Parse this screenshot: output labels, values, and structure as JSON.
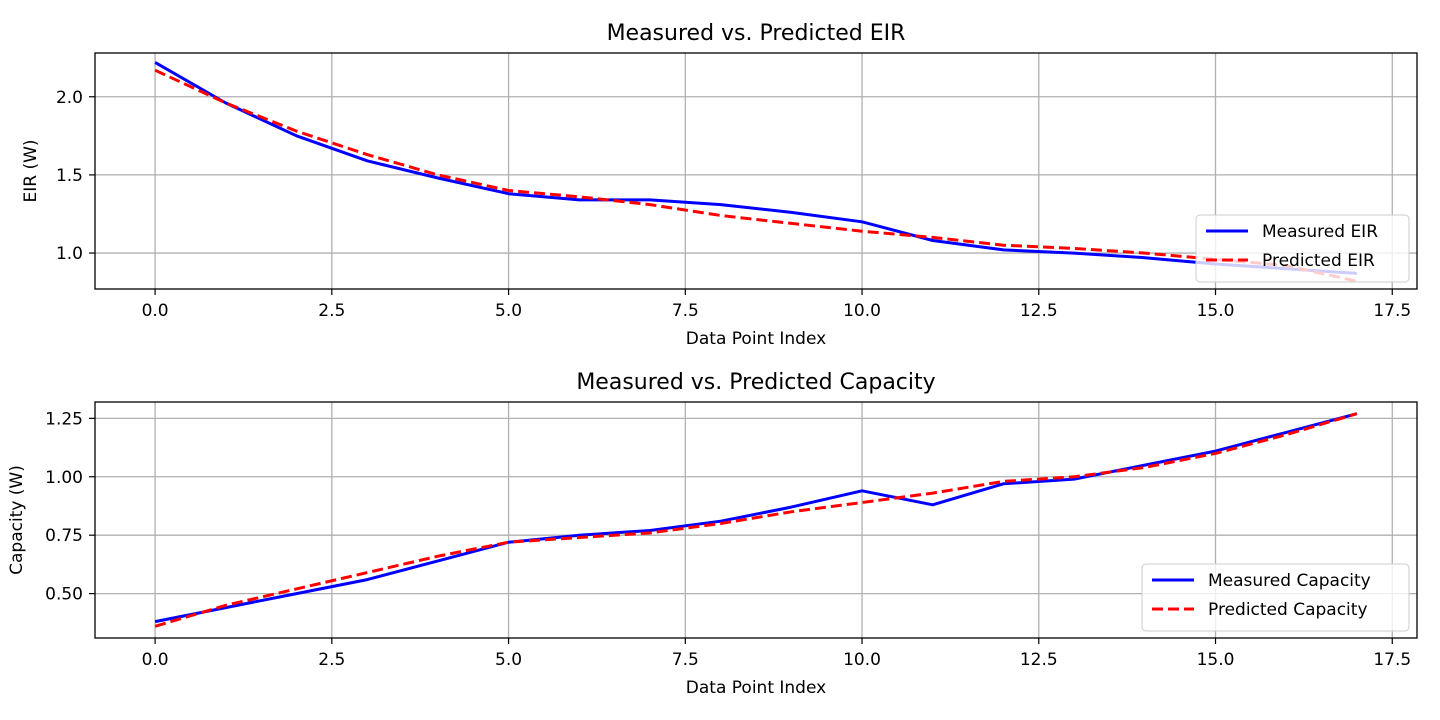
{
  "chart_data": [
    {
      "type": "line",
      "title": "Measured vs. Predicted EIR",
      "xlabel": "Data Point Index",
      "ylabel": "EIR (W)",
      "xlim": [
        -0.85,
        17.85
      ],
      "ylim": [
        0.77,
        2.28
      ],
      "xticks": [
        0.0,
        2.5,
        5.0,
        7.5,
        10.0,
        12.5,
        15.0,
        17.5
      ],
      "xtick_labels": [
        "0.0",
        "2.5",
        "5.0",
        "7.5",
        "10.0",
        "12.5",
        "15.0",
        "17.5"
      ],
      "yticks": [
        1.0,
        1.5,
        2.0
      ],
      "ytick_labels": [
        "1.0",
        "1.5",
        "2.0"
      ],
      "grid": true,
      "legend_position": "lower-right",
      "series": [
        {
          "name": "Measured EIR",
          "color": "#0000ff",
          "style": "solid",
          "x": [
            0,
            1,
            2,
            3,
            4,
            5,
            6,
            7,
            8,
            9,
            10,
            11,
            12,
            13,
            14,
            15,
            16,
            17
          ],
          "values": [
            2.22,
            1.96,
            1.75,
            1.59,
            1.48,
            1.38,
            1.34,
            1.34,
            1.31,
            1.26,
            1.2,
            1.08,
            1.02,
            1.0,
            0.97,
            0.93,
            0.9,
            0.87
          ]
        },
        {
          "name": "Predicted EIR",
          "color": "#ff0000",
          "style": "dashed",
          "x": [
            0,
            1,
            2,
            3,
            4,
            5,
            6,
            7,
            8,
            9,
            10,
            11,
            12,
            13,
            14,
            15,
            16,
            17
          ],
          "values": [
            2.17,
            1.96,
            1.78,
            1.63,
            1.5,
            1.4,
            1.36,
            1.31,
            1.24,
            1.19,
            1.14,
            1.1,
            1.05,
            1.03,
            1.0,
            0.96,
            0.92,
            0.82
          ]
        }
      ]
    },
    {
      "type": "line",
      "title": "Measured vs. Predicted Capacity",
      "xlabel": "Data Point Index",
      "ylabel": "Capacity (W)",
      "xlim": [
        -0.85,
        17.85
      ],
      "ylim": [
        0.31,
        1.32
      ],
      "xticks": [
        0.0,
        2.5,
        5.0,
        7.5,
        10.0,
        12.5,
        15.0,
        17.5
      ],
      "xtick_labels": [
        "0.0",
        "2.5",
        "5.0",
        "7.5",
        "10.0",
        "12.5",
        "15.0",
        "17.5"
      ],
      "yticks": [
        0.5,
        0.75,
        1.0,
        1.25
      ],
      "ytick_labels": [
        "0.50",
        "0.75",
        "1.00",
        "1.25"
      ],
      "grid": true,
      "legend_position": "lower-right",
      "series": [
        {
          "name": "Measured Capacity",
          "color": "#0000ff",
          "style": "solid",
          "x": [
            0,
            1,
            2,
            3,
            4,
            5,
            6,
            7,
            8,
            9,
            10,
            11,
            12,
            13,
            14,
            15,
            16,
            17
          ],
          "values": [
            0.38,
            0.44,
            0.5,
            0.56,
            0.64,
            0.72,
            0.75,
            0.77,
            0.81,
            0.87,
            0.94,
            0.88,
            0.97,
            0.99,
            1.05,
            1.11,
            1.19,
            1.27
          ]
        },
        {
          "name": "Predicted Capacity",
          "color": "#ff0000",
          "style": "dashed",
          "x": [
            0,
            1,
            2,
            3,
            4,
            5,
            6,
            7,
            8,
            9,
            10,
            11,
            12,
            13,
            14,
            15,
            16,
            17
          ],
          "values": [
            0.36,
            0.45,
            0.52,
            0.59,
            0.66,
            0.72,
            0.74,
            0.76,
            0.8,
            0.85,
            0.89,
            0.93,
            0.98,
            1.0,
            1.04,
            1.1,
            1.18,
            1.27
          ]
        }
      ]
    }
  ]
}
